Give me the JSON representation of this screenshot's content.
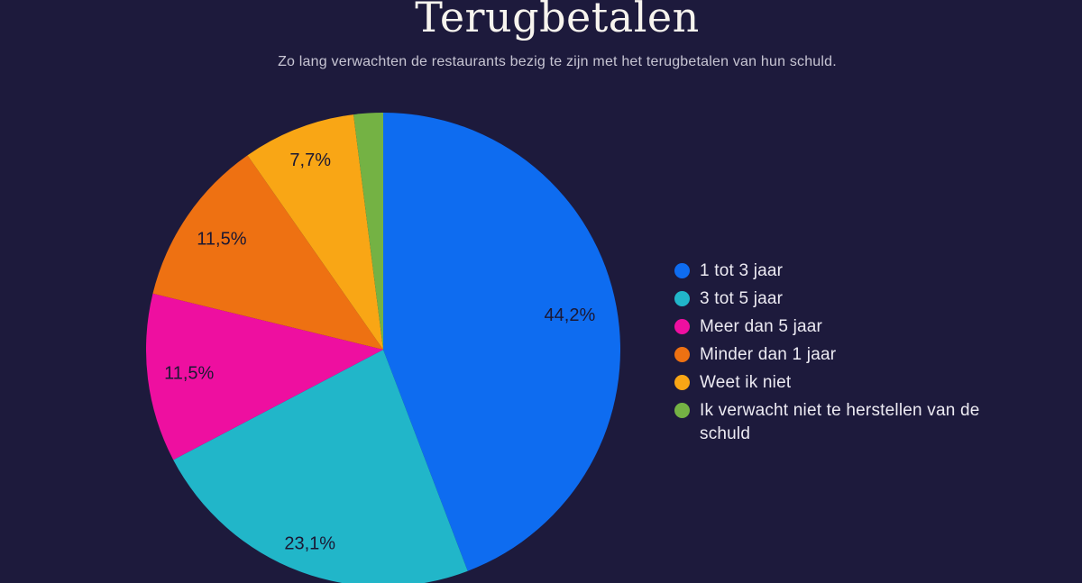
{
  "header": {
    "title": "Terugbetalen",
    "subtitle": "Zo lang verwachten de restaurants bezig te zijn met het terugbetalen van hun schuld."
  },
  "colors": {
    "background": "#1d1a3c",
    "title_text": "#f7f4ee",
    "subtitle_text": "#c7c5d3",
    "legend_text": "#eceaf2",
    "slice_label_text": "#1b1833"
  },
  "chart_data": {
    "type": "pie",
    "title": "Terugbetalen",
    "subtitle": "Zo lang verwachten de restaurants bezig te zijn met het terugbetalen van hun schuld.",
    "categories": [
      "1 tot 3 jaar",
      "3 tot 5 jaar",
      "Meer dan 5 jaar",
      "Minder dan 1 jaar",
      "Weet ik niet",
      "Ik verwacht niet te herstellen van de schuld"
    ],
    "values": [
      44.2,
      23.1,
      11.5,
      11.5,
      7.7,
      2.0
    ],
    "unit": "%",
    "start_angle_deg": 0,
    "direction": "clockwise",
    "legend_position": "right",
    "slices": [
      {
        "label": "1 tot 3 jaar",
        "value": 44.2,
        "display": "44,2%",
        "color": "#0e6cf0"
      },
      {
        "label": "3 tot 5 jaar",
        "value": 23.1,
        "display": "23,1%",
        "color": "#21b6c9"
      },
      {
        "label": "Meer dan 5 jaar",
        "value": 11.5,
        "display": "11,5%",
        "color": "#ee0fa0"
      },
      {
        "label": "Minder dan 1 jaar",
        "value": 11.5,
        "display": "11,5%",
        "color": "#ee7112"
      },
      {
        "label": "Weet ik niet",
        "value": 7.7,
        "display": "7,7%",
        "color": "#f9a615"
      },
      {
        "label": "Ik verwacht niet te herstellen van de schuld",
        "value": 2.0,
        "display": "",
        "color": "#74b244"
      }
    ]
  }
}
